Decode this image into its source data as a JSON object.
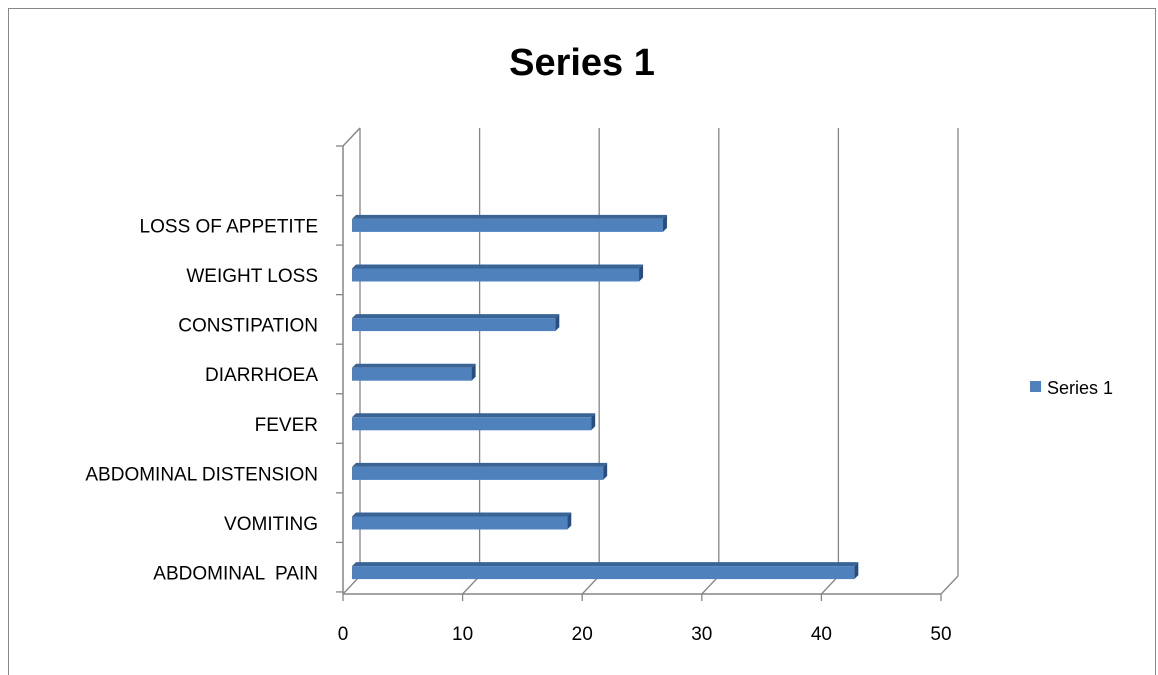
{
  "chart_data": {
    "type": "bar",
    "orientation": "horizontal",
    "style": "3d",
    "title": "Series 1",
    "categories": [
      "ABDOMINAL  PAIN",
      "VOMITING",
      "ABDOMINAL DISTENSION",
      "FEVER",
      "DIARRHOEA",
      "CONSTIPATION",
      "WEIGHT LOSS",
      "LOSS OF APPETITE"
    ],
    "series": [
      {
        "name": "Series 1",
        "values": [
          42,
          18,
          21,
          20,
          10,
          17,
          24,
          26
        ]
      }
    ],
    "xlim": [
      0,
      50
    ],
    "xticks": [
      0,
      10,
      20,
      30,
      40,
      50
    ],
    "grid": true,
    "legend_position": "right",
    "bar_color": "#4F81BD"
  }
}
